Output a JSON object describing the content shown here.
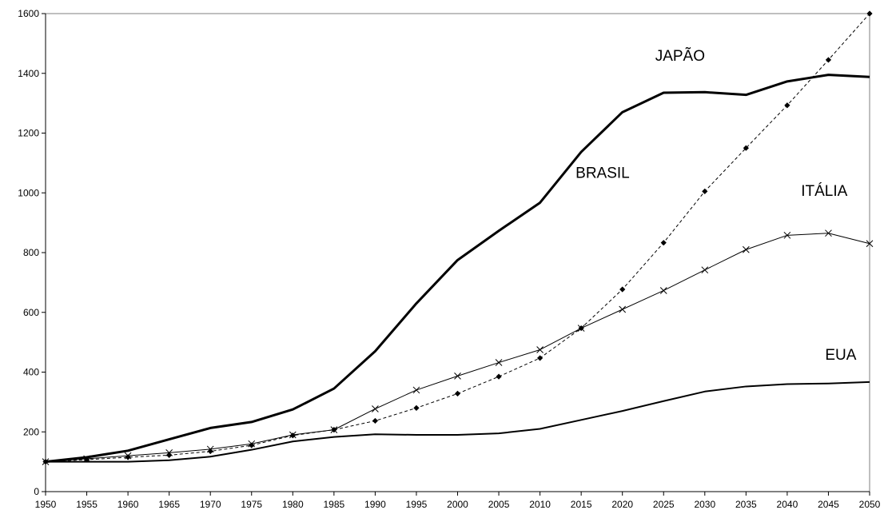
{
  "chart_data": {
    "type": "line",
    "title": "",
    "xlabel": "",
    "ylabel": "",
    "x": [
      1950,
      1955,
      1960,
      1965,
      1970,
      1975,
      1980,
      1985,
      1990,
      1995,
      2000,
      2005,
      2010,
      2015,
      2020,
      2025,
      2030,
      2035,
      2040,
      2045,
      2050
    ],
    "xlim": [
      1950,
      2050
    ],
    "ylim": [
      0,
      1600
    ],
    "yticks": [
      0,
      200,
      400,
      600,
      800,
      1000,
      1200,
      1400,
      1600
    ],
    "grid": false,
    "legend": "none",
    "series": [
      {
        "name": "JAPÃO",
        "style": "thick-solid",
        "values": [
          100,
          115,
          137,
          175,
          213,
          233,
          275,
          345,
          470,
          630,
          775,
          873,
          967,
          1137,
          1270,
          1335,
          1337,
          1328,
          1373,
          1395,
          1388
        ]
      },
      {
        "name": "BRASIL",
        "style": "dashed-diamond",
        "values": [
          100,
          107,
          115,
          122,
          135,
          155,
          188,
          207,
          237,
          280,
          328,
          385,
          447,
          547,
          677,
          833,
          1005,
          1150,
          1293,
          1445,
          1600
        ]
      },
      {
        "name": "ITÁLIA",
        "style": "thin-solid-x",
        "values": [
          100,
          110,
          120,
          130,
          142,
          160,
          190,
          207,
          277,
          340,
          387,
          432,
          475,
          547,
          610,
          673,
          742,
          810,
          858,
          865,
          830
        ]
      },
      {
        "name": "EUA",
        "style": "medium-solid",
        "values": [
          100,
          100,
          100,
          105,
          117,
          140,
          168,
          183,
          192,
          190,
          190,
          195,
          210,
          240,
          270,
          303,
          335,
          352,
          360,
          362,
          367
        ]
      }
    ],
    "annotations": [
      {
        "text": "JAPÃO",
        "x": 2027,
        "y": 1442
      },
      {
        "text": "BRASIL",
        "x": 2017.6,
        "y": 1050
      },
      {
        "text": "ITÁLIA",
        "x": 2044.5,
        "y": 990
      },
      {
        "text": "EUA",
        "x": 2046.5,
        "y": 442
      }
    ]
  }
}
